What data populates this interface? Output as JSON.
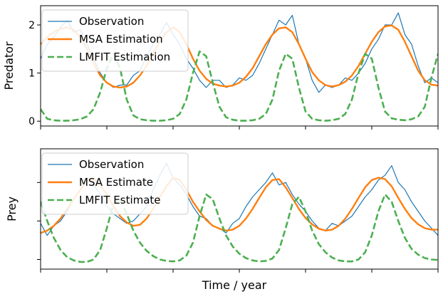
{
  "chart_data": [
    {
      "type": "line",
      "ylabel": "Predator",
      "xlabel": "",
      "xlim": [
        0,
        30
      ],
      "ylim": [
        -0.1,
        2.4
      ],
      "yticks": [
        0,
        1,
        2
      ],
      "ytick_labels": [
        "0",
        "1",
        "2"
      ],
      "xticks": [
        0,
        5,
        10,
        15,
        20,
        25,
        30
      ],
      "xtick_labels": [
        "",
        "",
        "",
        "",
        "",
        "",
        ""
      ],
      "legend_position": "top-left",
      "grid": false,
      "series": [
        {
          "name": "Observation",
          "color": "#1f77b4",
          "style": "solid-thin",
          "x": [
            0,
            0.5,
            1,
            1.5,
            2,
            2.5,
            3,
            3.5,
            4,
            4.5,
            5,
            5.5,
            6,
            6.5,
            7,
            7.5,
            8,
            8.5,
            9,
            9.5,
            10,
            10.5,
            11,
            11.5,
            12,
            12.5,
            13,
            13.5,
            14,
            14.5,
            15,
            15.5,
            16,
            16.5,
            17,
            17.5,
            18,
            18.5,
            19,
            19.5,
            20,
            20.5,
            21,
            21.5,
            22,
            22.5,
            23,
            23.5,
            24,
            24.5,
            25,
            25.5,
            26,
            26.5,
            27,
            27.5,
            28,
            28.5,
            29,
            29.5,
            30
          ],
          "values": [
            1.3,
            1.6,
            1.75,
            1.95,
            2.1,
            1.85,
            1.9,
            1.6,
            1.3,
            1.0,
            0.8,
            0.7,
            0.75,
            0.75,
            0.95,
            1.05,
            1.35,
            1.6,
            1.8,
            2.05,
            1.8,
            1.6,
            1.3,
            1.1,
            0.85,
            0.7,
            0.85,
            0.85,
            0.7,
            0.75,
            0.9,
            0.85,
            0.95,
            1.2,
            1.5,
            1.8,
            2.1,
            2.0,
            2.2,
            1.6,
            1.3,
            0.85,
            0.6,
            0.75,
            0.7,
            0.75,
            0.9,
            0.85,
            1.0,
            1.2,
            1.5,
            1.7,
            2.0,
            2.0,
            2.25,
            1.8,
            1.6,
            1.15,
            0.8,
            0.9,
            0.8
          ]
        },
        {
          "name": "MSA Estimation",
          "color": "#ff7f0e",
          "style": "solid-thick",
          "x": [
            0,
            0.5,
            1,
            1.5,
            2,
            2.5,
            3,
            3.5,
            4,
            4.5,
            5,
            5.5,
            6,
            6.5,
            7,
            7.5,
            8,
            8.5,
            9,
            9.5,
            10,
            10.5,
            11,
            11.5,
            12,
            12.5,
            13,
            13.5,
            14,
            14.5,
            15,
            15.5,
            16,
            16.5,
            17,
            17.5,
            18,
            18.5,
            19,
            19.5,
            20,
            20.5,
            21,
            21.5,
            22,
            22.5,
            23,
            23.5,
            24,
            24.5,
            25,
            25.5,
            26,
            26.5,
            27,
            27.5,
            28,
            28.5,
            29,
            29.5,
            30
          ],
          "values": [
            1.6,
            1.75,
            1.85,
            1.92,
            1.95,
            1.9,
            1.75,
            1.5,
            1.2,
            0.95,
            0.8,
            0.72,
            0.7,
            0.72,
            0.8,
            0.95,
            1.15,
            1.4,
            1.65,
            1.85,
            1.95,
            1.85,
            1.6,
            1.3,
            1.05,
            0.88,
            0.78,
            0.74,
            0.72,
            0.74,
            0.8,
            0.92,
            1.1,
            1.35,
            1.6,
            1.8,
            1.93,
            1.95,
            1.85,
            1.6,
            1.3,
            1.02,
            0.85,
            0.75,
            0.72,
            0.75,
            0.82,
            0.95,
            1.15,
            1.4,
            1.65,
            1.85,
            1.97,
            1.99,
            1.9,
            1.65,
            1.35,
            1.05,
            0.85,
            0.76,
            0.74
          ]
        },
        {
          "name": "LMFIT Estimation",
          "color": "#4caf50",
          "style": "dashed",
          "x": [
            0,
            0.5,
            1,
            1.5,
            2,
            2.5,
            3,
            3.5,
            4,
            4.5,
            5,
            5.5,
            6,
            6.5,
            7,
            7.5,
            8,
            8.5,
            9,
            9.5,
            10,
            10.5,
            11,
            11.5,
            12,
            12.5,
            13,
            13.5,
            14,
            14.5,
            15,
            15.5,
            16,
            16.5,
            17,
            17.5,
            18,
            18.5,
            19,
            19.5,
            20,
            20.5,
            21,
            21.5,
            22,
            22.5,
            23,
            23.5,
            24,
            24.5,
            25,
            25.5,
            26,
            26.5,
            27,
            27.5,
            28,
            28.5,
            29,
            29.5,
            30
          ],
          "values": [
            0.25,
            0.05,
            0.02,
            0.01,
            0.01,
            0.02,
            0.04,
            0.1,
            0.25,
            0.6,
            1.1,
            1.4,
            1.1,
            0.45,
            0.12,
            0.04,
            0.02,
            0.01,
            0.01,
            0.02,
            0.05,
            0.15,
            0.45,
            1.0,
            1.45,
            1.35,
            0.8,
            0.3,
            0.08,
            0.03,
            0.01,
            0.01,
            0.02,
            0.05,
            0.15,
            0.45,
            1.05,
            1.4,
            1.3,
            0.7,
            0.2,
            0.05,
            0.02,
            0.01,
            0.02,
            0.05,
            0.15,
            0.45,
            1.0,
            1.4,
            1.3,
            0.7,
            0.2,
            0.06,
            0.03,
            0.02,
            0.04,
            0.1,
            0.3,
            0.9,
            1.4
          ]
        }
      ]
    },
    {
      "type": "line",
      "ylabel": "Prey",
      "xlabel": "Time / year",
      "xlim": [
        0,
        30
      ],
      "ylim": [
        -0.1,
        2.4
      ],
      "yticks": [
        0.1,
        0.9,
        1.7
      ],
      "ytick_labels": [
        "",
        "",
        ""
      ],
      "xticks": [
        0,
        5,
        10,
        15,
        20,
        25,
        30
      ],
      "xtick_labels": [
        "",
        "",
        "",
        "",
        "",
        "",
        ""
      ],
      "legend_position": "top-left",
      "grid": false,
      "series": [
        {
          "name": "Observation",
          "color": "#1f77b4",
          "style": "solid-thin",
          "x": [
            0,
            0.5,
            1,
            1.5,
            2,
            2.5,
            3,
            3.5,
            4,
            4.5,
            5,
            5.5,
            6,
            6.5,
            7,
            7.5,
            8,
            8.5,
            9,
            9.5,
            10,
            10.5,
            11,
            11.5,
            12,
            12.5,
            13,
            13.5,
            14,
            14.5,
            15,
            15.5,
            16,
            16.5,
            17,
            17.5,
            18,
            18.5,
            19,
            19.5,
            20,
            20.5,
            21,
            21.5,
            22,
            22.5,
            23,
            23.5,
            24,
            24.5,
            25,
            25.5,
            26,
            26.5,
            27,
            27.5,
            28,
            28.5,
            29,
            29.5,
            30
          ],
          "values": [
            0.85,
            0.6,
            0.8,
            0.9,
            1.1,
            1.35,
            1.55,
            1.8,
            1.65,
            1.45,
            1.2,
            1.05,
            0.95,
            0.85,
            0.9,
            1.05,
            1.2,
            1.55,
            1.85,
            2.1,
            1.8,
            1.65,
            1.45,
            1.2,
            1.0,
            0.95,
            0.8,
            0.75,
            0.65,
            0.85,
            0.95,
            1.2,
            1.4,
            1.55,
            1.7,
            1.9,
            1.65,
            1.7,
            1.45,
            1.25,
            1.1,
            0.9,
            0.75,
            0.7,
            0.85,
            0.8,
            0.9,
            1.0,
            1.2,
            1.4,
            1.55,
            1.75,
            1.85,
            2.05,
            1.7,
            1.55,
            1.3,
            1.1,
            0.9,
            0.75,
            0.6
          ]
        },
        {
          "name": "MSA Estimate",
          "color": "#ff7f0e",
          "style": "solid-thick",
          "x": [
            0,
            0.5,
            1,
            1.5,
            2,
            2.5,
            3,
            3.5,
            4,
            4.5,
            5,
            5.5,
            6,
            6.5,
            7,
            7.5,
            8,
            8.5,
            9,
            9.5,
            10,
            10.5,
            11,
            11.5,
            12,
            12.5,
            13,
            13.5,
            14,
            14.5,
            15,
            15.5,
            16,
            16.5,
            17,
            17.5,
            18,
            18.5,
            19,
            19.5,
            20,
            20.5,
            21,
            21.5,
            22,
            22.5,
            23,
            23.5,
            24,
            24.5,
            25,
            25.5,
            26,
            26.5,
            27,
            27.5,
            28,
            28.5,
            29,
            29.5,
            30
          ],
          "values": [
            0.65,
            0.7,
            0.8,
            0.95,
            1.15,
            1.35,
            1.55,
            1.72,
            1.78,
            1.65,
            1.45,
            1.2,
            1.0,
            0.87,
            0.8,
            0.82,
            0.95,
            1.15,
            1.4,
            1.62,
            1.8,
            1.75,
            1.55,
            1.3,
            1.1,
            0.92,
            0.8,
            0.74,
            0.7,
            0.72,
            0.8,
            0.95,
            1.15,
            1.38,
            1.6,
            1.75,
            1.77,
            1.6,
            1.38,
            1.15,
            0.96,
            0.83,
            0.74,
            0.7,
            0.72,
            0.8,
            0.95,
            1.15,
            1.38,
            1.6,
            1.75,
            1.8,
            1.77,
            1.62,
            1.38,
            1.15,
            0.96,
            0.83,
            0.75,
            0.72,
            0.72
          ]
        },
        {
          "name": "LMFIT Estimate",
          "color": "#4caf50",
          "style": "dashed",
          "x": [
            0,
            0.5,
            1,
            1.5,
            2,
            2.5,
            3,
            3.5,
            4,
            4.5,
            5,
            5.5,
            6,
            6.5,
            7,
            7.5,
            8,
            8.5,
            9,
            9.5,
            10,
            10.5,
            11,
            11.5,
            12,
            12.5,
            13,
            13.5,
            14,
            14.5,
            15,
            15.5,
            16,
            16.5,
            17,
            17.5,
            18,
            18.5,
            19,
            19.5,
            20,
            20.5,
            21,
            21.5,
            22,
            22.5,
            23,
            23.5,
            24,
            24.5,
            25,
            25.5,
            26,
            26.5,
            27,
            27.5,
            28,
            28.5,
            29,
            29.5,
            30
          ],
          "values": [
            1.3,
            0.9,
            0.55,
            0.3,
            0.15,
            0.08,
            0.05,
            0.05,
            0.1,
            0.3,
            0.75,
            1.25,
            1.35,
            1.05,
            0.7,
            0.45,
            0.28,
            0.17,
            0.1,
            0.07,
            0.06,
            0.08,
            0.18,
            0.45,
            1.0,
            1.45,
            1.35,
            0.95,
            0.6,
            0.37,
            0.22,
            0.13,
            0.08,
            0.06,
            0.07,
            0.12,
            0.3,
            0.75,
            1.25,
            1.4,
            1.1,
            0.7,
            0.42,
            0.25,
            0.14,
            0.08,
            0.06,
            0.06,
            0.1,
            0.25,
            0.6,
            1.1,
            1.45,
            1.3,
            0.9,
            0.55,
            0.32,
            0.2,
            0.13,
            0.1,
            0.09
          ]
        }
      ]
    }
  ]
}
